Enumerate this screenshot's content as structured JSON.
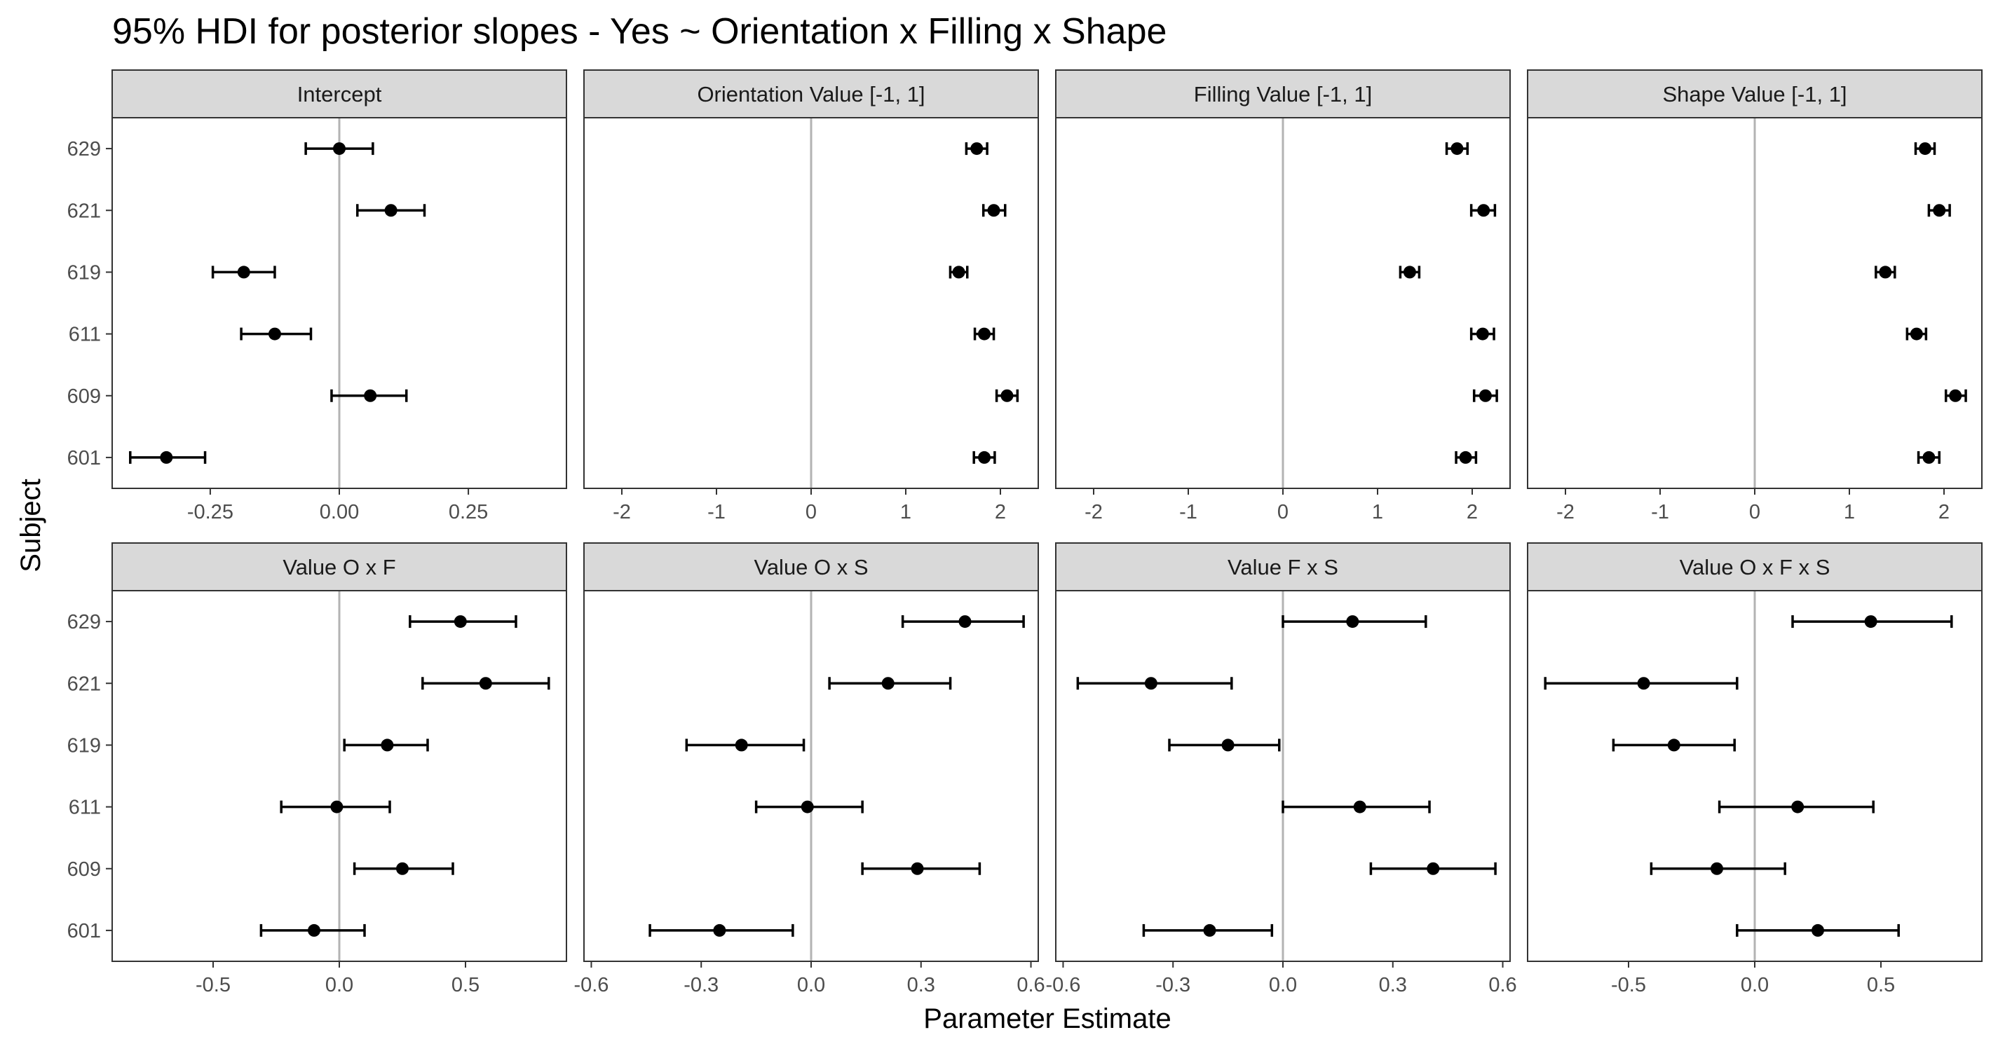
{
  "chart_data": {
    "type": "errorbar-facet",
    "title": "95% HDI for posterior slopes - Yes ~ Orientation x Filling x Shape",
    "xlabel": "Parameter Estimate",
    "ylabel": "Subject",
    "subjects": [
      "629",
      "621",
      "619",
      "611",
      "609",
      "601"
    ],
    "reference_line": 0,
    "grid": false,
    "panels": [
      {
        "name": "Intercept",
        "xlim": [
          -0.44,
          0.44
        ],
        "ticks": [
          -0.25,
          0,
          0.25
        ],
        "tick_labels": [
          "-0.25",
          "0.00",
          "0.25"
        ],
        "points": [
          {
            "subject": "629",
            "estimate": 0.0,
            "lower": -0.065,
            "upper": 0.065
          },
          {
            "subject": "621",
            "estimate": 0.1,
            "lower": 0.035,
            "upper": 0.165
          },
          {
            "subject": "619",
            "estimate": -0.185,
            "lower": -0.245,
            "upper": -0.125
          },
          {
            "subject": "611",
            "estimate": -0.125,
            "lower": -0.19,
            "upper": -0.055
          },
          {
            "subject": "609",
            "estimate": 0.06,
            "lower": -0.015,
            "upper": 0.13
          },
          {
            "subject": "601",
            "estimate": -0.335,
            "lower": -0.405,
            "upper": -0.26
          }
        ]
      },
      {
        "name": "Orientation Value [-1, 1]",
        "xlim": [
          -2.4,
          2.4
        ],
        "ticks": [
          -2,
          -1,
          0,
          1,
          2
        ],
        "tick_labels": [
          "-2",
          "-1",
          "0",
          "1",
          "2"
        ],
        "points": [
          {
            "subject": "629",
            "estimate": 1.75,
            "lower": 1.64,
            "upper": 1.86
          },
          {
            "subject": "621",
            "estimate": 1.93,
            "lower": 1.82,
            "upper": 2.05
          },
          {
            "subject": "619",
            "estimate": 1.56,
            "lower": 1.47,
            "upper": 1.65
          },
          {
            "subject": "611",
            "estimate": 1.83,
            "lower": 1.73,
            "upper": 1.93
          },
          {
            "subject": "609",
            "estimate": 2.07,
            "lower": 1.96,
            "upper": 2.18
          },
          {
            "subject": "601",
            "estimate": 1.83,
            "lower": 1.72,
            "upper": 1.94
          }
        ]
      },
      {
        "name": "Filling Value [-1, 1]",
        "xlim": [
          -2.4,
          2.4
        ],
        "ticks": [
          -2,
          -1,
          0,
          1,
          2
        ],
        "tick_labels": [
          "-2",
          "-1",
          "0",
          "1",
          "2"
        ],
        "points": [
          {
            "subject": "629",
            "estimate": 1.84,
            "lower": 1.73,
            "upper": 1.95
          },
          {
            "subject": "621",
            "estimate": 2.12,
            "lower": 1.99,
            "upper": 2.24
          },
          {
            "subject": "619",
            "estimate": 1.34,
            "lower": 1.24,
            "upper": 1.44
          },
          {
            "subject": "611",
            "estimate": 2.11,
            "lower": 1.99,
            "upper": 2.23
          },
          {
            "subject": "609",
            "estimate": 2.14,
            "lower": 2.02,
            "upper": 2.26
          },
          {
            "subject": "601",
            "estimate": 1.93,
            "lower": 1.83,
            "upper": 2.04
          }
        ]
      },
      {
        "name": "Shape Value [-1, 1]",
        "xlim": [
          -2.4,
          2.4
        ],
        "ticks": [
          -2,
          -1,
          0,
          1,
          2
        ],
        "tick_labels": [
          "-2",
          "-1",
          "0",
          "1",
          "2"
        ],
        "points": [
          {
            "subject": "629",
            "estimate": 1.8,
            "lower": 1.7,
            "upper": 1.9
          },
          {
            "subject": "621",
            "estimate": 1.95,
            "lower": 1.84,
            "upper": 2.06
          },
          {
            "subject": "619",
            "estimate": 1.38,
            "lower": 1.28,
            "upper": 1.48
          },
          {
            "subject": "611",
            "estimate": 1.71,
            "lower": 1.61,
            "upper": 1.81
          },
          {
            "subject": "609",
            "estimate": 2.12,
            "lower": 2.02,
            "upper": 2.23
          },
          {
            "subject": "601",
            "estimate": 1.84,
            "lower": 1.73,
            "upper": 1.95
          }
        ]
      },
      {
        "name": "Value O x F",
        "xlim": [
          -0.9,
          0.9
        ],
        "ticks": [
          -0.5,
          0,
          0.5
        ],
        "tick_labels": [
          "-0.5",
          "0.0",
          "0.5"
        ],
        "points": [
          {
            "subject": "629",
            "estimate": 0.48,
            "lower": 0.28,
            "upper": 0.7
          },
          {
            "subject": "621",
            "estimate": 0.58,
            "lower": 0.33,
            "upper": 0.83
          },
          {
            "subject": "619",
            "estimate": 0.19,
            "lower": 0.02,
            "upper": 0.35
          },
          {
            "subject": "611",
            "estimate": -0.01,
            "lower": -0.23,
            "upper": 0.2
          },
          {
            "subject": "609",
            "estimate": 0.25,
            "lower": 0.06,
            "upper": 0.45
          },
          {
            "subject": "601",
            "estimate": -0.1,
            "lower": -0.31,
            "upper": 0.1
          }
        ]
      },
      {
        "name": "Value O x S",
        "xlim": [
          -0.62,
          0.62
        ],
        "ticks": [
          -0.6,
          -0.3,
          0,
          0.3,
          0.6
        ],
        "tick_labels": [
          "-0.6",
          "-0.3",
          "0.0",
          "0.3",
          "0.6"
        ],
        "points": [
          {
            "subject": "629",
            "estimate": 0.42,
            "lower": 0.25,
            "upper": 0.58
          },
          {
            "subject": "621",
            "estimate": 0.21,
            "lower": 0.05,
            "upper": 0.38
          },
          {
            "subject": "619",
            "estimate": -0.19,
            "lower": -0.34,
            "upper": -0.02
          },
          {
            "subject": "611",
            "estimate": -0.01,
            "lower": -0.15,
            "upper": 0.14
          },
          {
            "subject": "609",
            "estimate": 0.29,
            "lower": 0.14,
            "upper": 0.46
          },
          {
            "subject": "601",
            "estimate": -0.25,
            "lower": -0.44,
            "upper": -0.05
          }
        ]
      },
      {
        "name": "Value F x S",
        "xlim": [
          -0.62,
          0.62
        ],
        "ticks": [
          -0.6,
          -0.3,
          0,
          0.3,
          0.6
        ],
        "tick_labels": [
          "-0.6",
          "-0.3",
          "0.0",
          "0.3",
          "0.6"
        ],
        "points": [
          {
            "subject": "629",
            "estimate": 0.19,
            "lower": 0.0,
            "upper": 0.39
          },
          {
            "subject": "621",
            "estimate": -0.36,
            "lower": -0.56,
            "upper": -0.14
          },
          {
            "subject": "619",
            "estimate": -0.15,
            "lower": -0.31,
            "upper": -0.01
          },
          {
            "subject": "611",
            "estimate": 0.21,
            "lower": 0.0,
            "upper": 0.4
          },
          {
            "subject": "609",
            "estimate": 0.41,
            "lower": 0.24,
            "upper": 0.58
          },
          {
            "subject": "601",
            "estimate": -0.2,
            "lower": -0.38,
            "upper": -0.03
          }
        ]
      },
      {
        "name": "Value O x F x S",
        "xlim": [
          -0.9,
          0.9
        ],
        "ticks": [
          -0.5,
          0,
          0.5
        ],
        "tick_labels": [
          "-0.5",
          "0.0",
          "0.5"
        ],
        "points": [
          {
            "subject": "629",
            "estimate": 0.46,
            "lower": 0.15,
            "upper": 0.78
          },
          {
            "subject": "621",
            "estimate": -0.44,
            "lower": -0.83,
            "upper": -0.07
          },
          {
            "subject": "619",
            "estimate": -0.32,
            "lower": -0.56,
            "upper": -0.08
          },
          {
            "subject": "611",
            "estimate": 0.17,
            "lower": -0.14,
            "upper": 0.47
          },
          {
            "subject": "609",
            "estimate": -0.15,
            "lower": -0.41,
            "upper": 0.12
          },
          {
            "subject": "601",
            "estimate": 0.25,
            "lower": -0.07,
            "upper": 0.57
          }
        ]
      }
    ],
    "colors": {
      "point": "#000000",
      "errorbar": "#000000",
      "reference_line": "#b3b3b3",
      "strip_fill": "#d9d9d9",
      "panel_border": "#333333",
      "tick_label": "#4d4d4d"
    }
  }
}
